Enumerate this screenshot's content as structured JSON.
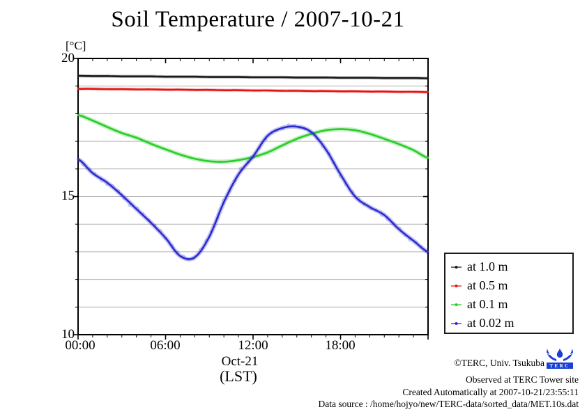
{
  "title": "Soil Temperature / 2007-10-21",
  "axes": {
    "y_unit_label": "[°C]",
    "y_ticks": [
      "20",
      "15",
      "10"
    ],
    "x_ticks": [
      "00:00",
      "06:00",
      "12:00",
      "18:00"
    ],
    "x_date_label": "Oct-21",
    "x_timezone_label": "(LST)"
  },
  "legend": {
    "items": [
      "at 1.0 m",
      "at 0.5 m",
      "at 0.1 m",
      "at 0.02 m"
    ]
  },
  "footer": {
    "copyright": "©TERC, Univ. Tsukuba",
    "observed": "Observed at TERC Tower site",
    "created": "Created Automatically at 2007-10-21/23:55:11",
    "source": "Data source : /home/hojyo/new/TERC-data/sorted_data/MET.10s.dat",
    "logo_text": "TERC",
    "logo_color": "#1a3fd4"
  },
  "chart_data": {
    "type": "line",
    "title": "Soil Temperature / 2007-10-21",
    "xlabel": "Oct-21 (LST)",
    "ylabel": "[°C]",
    "x_hours": [
      0,
      1,
      2,
      3,
      4,
      5,
      6,
      7,
      8,
      9,
      10,
      11,
      12,
      13,
      14,
      15,
      16,
      17,
      18,
      19,
      20,
      21,
      22,
      23,
      24
    ],
    "xlim_hours": [
      0,
      24
    ],
    "x_tick_hours": [
      0,
      6,
      12,
      18,
      24
    ],
    "ylim": [
      10,
      20
    ],
    "y_major_ticks": [
      10,
      15,
      20
    ],
    "grid": "horizontal gray gridlines at every 1 degree C",
    "legend_position": "outside lower right",
    "grid_color": "#b3b3b3",
    "series": [
      {
        "name": "at 1.0 m",
        "color": "#1a1a1a",
        "values": [
          19.37,
          19.36,
          19.36,
          19.35,
          19.35,
          19.35,
          19.34,
          19.34,
          19.34,
          19.33,
          19.33,
          19.33,
          19.32,
          19.32,
          19.32,
          19.31,
          19.31,
          19.31,
          19.3,
          19.3,
          19.3,
          19.29,
          19.29,
          19.29,
          19.28
        ]
      },
      {
        "name": "at 0.5 m",
        "color": "#e61515",
        "values": [
          18.9,
          18.9,
          18.89,
          18.89,
          18.88,
          18.88,
          18.87,
          18.87,
          18.86,
          18.86,
          18.85,
          18.85,
          18.84,
          18.84,
          18.83,
          18.83,
          18.82,
          18.82,
          18.81,
          18.81,
          18.8,
          18.8,
          18.79,
          18.79,
          18.78
        ]
      },
      {
        "name": "at 0.1 m",
        "color": "#28cc28",
        "values": [
          17.95,
          17.75,
          17.52,
          17.3,
          17.13,
          16.91,
          16.71,
          16.52,
          16.37,
          16.28,
          16.26,
          16.32,
          16.43,
          16.6,
          16.85,
          17.09,
          17.27,
          17.4,
          17.44,
          17.4,
          17.27,
          17.09,
          16.9,
          16.68,
          16.4
        ]
      },
      {
        "name": "at 0.02 m",
        "color": "#2b2bd0",
        "values": [
          16.35,
          15.85,
          15.5,
          15.05,
          14.55,
          14.05,
          13.5,
          12.85,
          12.8,
          13.55,
          14.8,
          15.8,
          16.45,
          17.2,
          17.48,
          17.53,
          17.33,
          16.7,
          15.8,
          15.0,
          14.62,
          14.33,
          13.82,
          13.4,
          13.0
        ]
      }
    ]
  }
}
